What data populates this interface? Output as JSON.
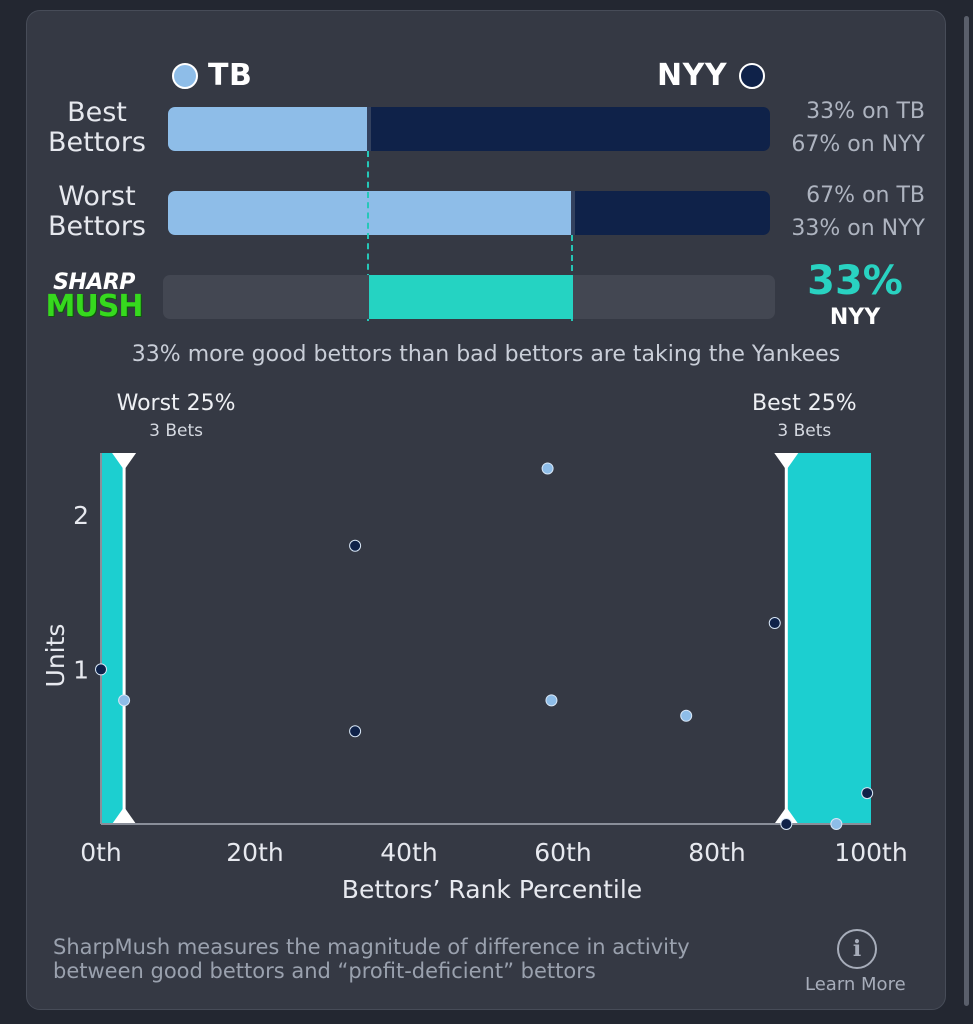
{
  "teams": {
    "left": {
      "name": "TB",
      "color": "#8ebde8"
    },
    "right": {
      "name": "NYY",
      "color": "#0f2249"
    }
  },
  "bars": [
    {
      "label_line1": "Best",
      "label_line2": "Bettors",
      "tb_fraction": 0.33,
      "pct_line1": "33% on TB",
      "pct_line2": "67% on NYY"
    },
    {
      "label_line1": "Worst",
      "label_line2": "Bettors",
      "tb_fraction": 0.67,
      "pct_line1": "67% on TB",
      "pct_line2": "33% on NYY"
    }
  ],
  "sharpmush": {
    "logo_line1": "SHARP",
    "logo_line2": "MUSH",
    "value": "33%",
    "team": "NYY",
    "fill_start": 0.33,
    "fill_end": 0.67,
    "summary": "33% more good bettors than bad bettors are taking the Yankees",
    "accent": "#25d3c2"
  },
  "chart_data": {
    "type": "scatter",
    "xlabel": "Bettors’ Rank Percentile",
    "ylabel": "Units",
    "xlim": [
      0,
      100
    ],
    "ylim": [
      0,
      2.4
    ],
    "x_ticks": [
      0,
      20,
      40,
      60,
      80,
      100
    ],
    "x_tick_labels": [
      "0th",
      "20th",
      "40th",
      "60th",
      "80th",
      "100th"
    ],
    "y_ticks": [
      1,
      2
    ],
    "y_tick_labels": [
      "1",
      "2"
    ],
    "bands": [
      {
        "name": "Worst 25%",
        "sub": "3 Bets",
        "x_from": 0,
        "x_to": 3
      },
      {
        "name": "Best 25%",
        "sub": "3 Bets",
        "x_from": 89,
        "x_to": 100
      }
    ],
    "series": [
      {
        "name": "TB",
        "color": "#8ebde8",
        "points": [
          [
            3,
            0.8
          ],
          [
            58,
            2.3
          ],
          [
            58.5,
            0.8
          ],
          [
            76,
            0.7
          ],
          [
            95.5,
            0.0
          ]
        ]
      },
      {
        "name": "NYY",
        "color": "#0f2249",
        "points": [
          [
            0,
            1.0
          ],
          [
            33,
            0.6
          ],
          [
            33,
            1.8
          ],
          [
            87.5,
            1.3
          ],
          [
            89,
            0.0
          ],
          [
            99.5,
            0.2
          ]
        ]
      }
    ]
  },
  "footer": {
    "line1": "SharpMush measures the magnitude of difference in activity",
    "line2": "between good bettors and “profit-deficient” bettors",
    "learn_more": "Learn More",
    "info_glyph": "i"
  }
}
